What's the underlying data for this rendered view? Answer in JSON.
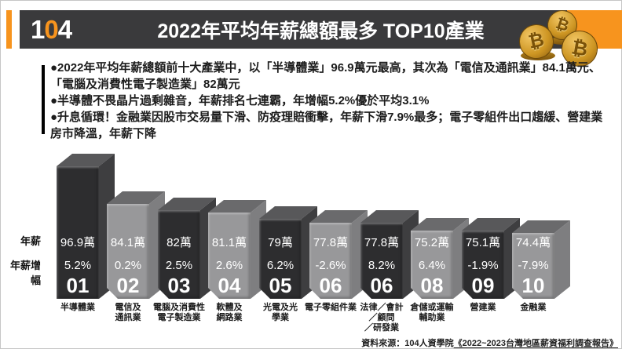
{
  "header": {
    "logo_1": "1",
    "logo_0": "0",
    "logo_4": "4",
    "title": "2022年平均年薪總額最多 TOP10產業",
    "coin_symbol": "₿",
    "accent_color": "#f7941e",
    "band_color": "#3a3a3c"
  },
  "summary": {
    "bullets": [
      "●2022年平均年薪總額前十大產業中，以「半導體業」96.9萬元最高，其次為「電信及通訊業」84.1萬元、「電腦及消費性電子製造業」82萬元",
      "●半導體不畏晶片過剩雜音，年薪排名七連霸，年增幅5.2%優於平均3.1%",
      "●升息循環！金融業因股市交易量下滑、防疫理賠衝擊，年薪下滑7.9%最多；電子零組件出口趨緩、營建業房市降溫，年薪下降"
    ]
  },
  "chart": {
    "row_label_salary": "年薪",
    "row_label_growth": "年薪增幅"
  },
  "chart_data": {
    "type": "bar",
    "title": "2022年平均年薪總額最多 TOP10產業",
    "categories": [
      "半導體業",
      "電信及通訊業",
      "電腦及消費性電子製造業",
      "軟體及網路業",
      "光電及光學業",
      "電子零組件業",
      "法律／會計／顧問／研發業",
      "倉儲或運輸輔助業",
      "營建業",
      "金融業"
    ],
    "series": [
      {
        "name": "年薪(萬元)",
        "values": [
          96.9,
          84.1,
          82,
          81.1,
          79,
          77.8,
          77.8,
          75.2,
          75.1,
          74.4
        ]
      },
      {
        "name": "年薪增幅(%)",
        "values": [
          5.2,
          0.2,
          2.5,
          2.6,
          6.2,
          -2.6,
          8.2,
          6.4,
          -1.9,
          -7.9
        ]
      }
    ],
    "legend": false,
    "grid": false,
    "bars": [
      {
        "rank": "01",
        "salary": "96.9萬",
        "growth": "5.2%",
        "shade": "dark",
        "label_lines": [
          "半導體業"
        ]
      },
      {
        "rank": "02",
        "salary": "84.1萬",
        "growth": "0.2%",
        "shade": "gray",
        "label_lines": [
          "電信及",
          "通訊業"
        ]
      },
      {
        "rank": "03",
        "salary": "82萬",
        "growth": "2.5%",
        "shade": "dark",
        "label_lines": [
          "電腦及消費性",
          "電子製造業"
        ]
      },
      {
        "rank": "04",
        "salary": "81.1萬",
        "growth": "2.6%",
        "shade": "gray",
        "label_lines": [
          "軟體及",
          "網路業"
        ]
      },
      {
        "rank": "05",
        "salary": "79萬",
        "growth": "6.2%",
        "shade": "dark",
        "label_lines": [
          "光電及光",
          "學業"
        ]
      },
      {
        "rank": "06",
        "salary": "77.8萬",
        "growth": "-2.6%",
        "shade": "gray",
        "label_lines": [
          "電子零組件業"
        ]
      },
      {
        "rank": "06",
        "salary": "77.8萬",
        "growth": "8.2%",
        "shade": "dark",
        "label_lines": [
          "法律／會計",
          "／顧問",
          "／研發業"
        ]
      },
      {
        "rank": "08",
        "salary": "75.2萬",
        "growth": "6.4%",
        "shade": "gray",
        "label_lines": [
          "倉儲或運輸",
          "輔助業"
        ]
      },
      {
        "rank": "09",
        "salary": "75.1萬",
        "growth": "-1.9%",
        "shade": "dark",
        "label_lines": [
          "營建業"
        ]
      },
      {
        "rank": "10",
        "salary": "74.4萬",
        "growth": "-7.9%",
        "shade": "gray",
        "label_lines": [
          "金融業"
        ]
      }
    ],
    "palette": {
      "dark": {
        "front": "#2d2d2f",
        "top": "#58585a",
        "side": "#3e3e40"
      },
      "gray": {
        "front": "#98989a",
        "top": "#6a6a6c",
        "side": "#7e7e80"
      }
    }
  },
  "footer": {
    "source_prefix": "資料來源：104人資學院",
    "source_book": "《2022~2023台灣地區薪資福利調查報告》"
  }
}
